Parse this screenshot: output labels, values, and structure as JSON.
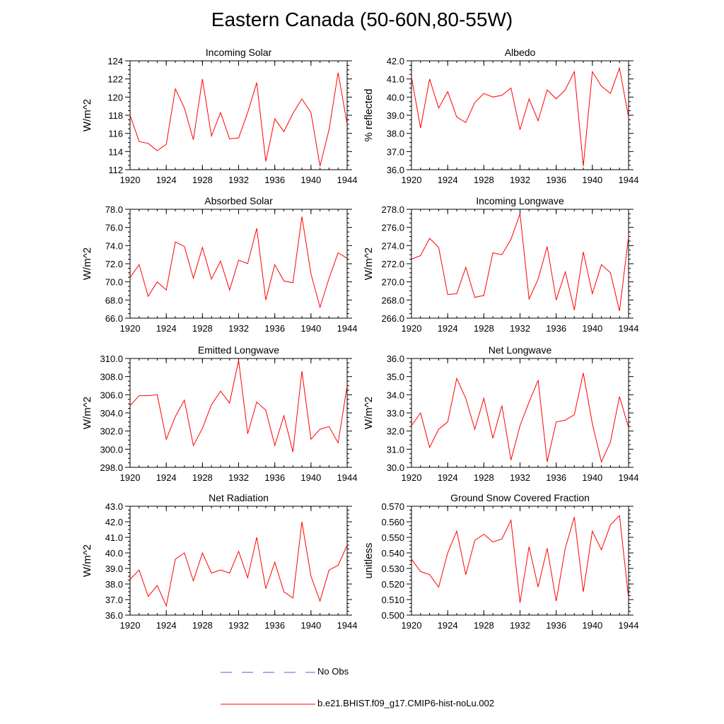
{
  "title": "Eastern Canada (50-60N,80-55W)",
  "colors": {
    "model": "#ff0000",
    "obs": "#5a5ad8",
    "axis": "#000000"
  },
  "legend": {
    "obs_label": "No Obs",
    "model_label": "b.e21.BHIST.f09_g17.CMIP6-hist-noLu.002"
  },
  "chart_data": [
    {
      "type": "line",
      "title": "Incoming Solar",
      "ylabel": "W/m^2",
      "xlim": [
        1920,
        1944
      ],
      "ylim": [
        112,
        124
      ],
      "xticks": [
        "1920",
        "1924",
        "1928",
        "1932",
        "1936",
        "1940",
        "1944"
      ],
      "yticks": [
        "112",
        "114",
        "116",
        "118",
        "120",
        "122",
        "124"
      ],
      "x": [
        1920,
        1921,
        1922,
        1923,
        1924,
        1925,
        1926,
        1927,
        1928,
        1929,
        1930,
        1931,
        1932,
        1933,
        1934,
        1935,
        1936,
        1937,
        1938,
        1939,
        1940,
        1941,
        1942,
        1943,
        1944
      ],
      "series": [
        {
          "values": [
            118.0,
            115.1,
            114.9,
            114.1,
            114.8,
            120.9,
            118.8,
            115.3,
            122.0,
            115.7,
            118.3,
            115.4,
            115.5,
            118.3,
            121.6,
            112.9,
            117.6,
            116.2,
            118.2,
            119.8,
            118.3,
            112.4,
            116.4,
            122.7,
            117.0
          ]
        }
      ]
    },
    {
      "type": "line",
      "title": "Albedo",
      "ylabel": "% reflected",
      "xlim": [
        1920,
        1944
      ],
      "ylim": [
        36.0,
        42.0
      ],
      "xticks": [
        "1920",
        "1924",
        "1928",
        "1932",
        "1936",
        "1940",
        "1944"
      ],
      "yticks": [
        "36.0",
        "37.0",
        "38.0",
        "39.0",
        "40.0",
        "41.0",
        "42.0"
      ],
      "x": [
        1920,
        1921,
        1922,
        1923,
        1924,
        1925,
        1926,
        1927,
        1928,
        1929,
        1930,
        1931,
        1932,
        1933,
        1934,
        1935,
        1936,
        1937,
        1938,
        1939,
        1940,
        1941,
        1942,
        1943,
        1944
      ],
      "series": [
        {
          "values": [
            41.1,
            38.3,
            41.0,
            39.4,
            40.3,
            38.9,
            38.6,
            39.7,
            40.2,
            40.0,
            40.1,
            40.5,
            38.2,
            39.9,
            38.7,
            40.4,
            39.9,
            40.4,
            41.4,
            36.2,
            41.4,
            40.6,
            40.2,
            41.6,
            38.9
          ]
        }
      ]
    },
    {
      "type": "line",
      "title": "Absorbed Solar",
      "ylabel": "W/m^2",
      "xlim": [
        1920,
        1944
      ],
      "ylim": [
        66.0,
        78.0
      ],
      "xticks": [
        "1920",
        "1924",
        "1928",
        "1932",
        "1936",
        "1940",
        "1944"
      ],
      "yticks": [
        "66.0",
        "68.0",
        "70.0",
        "72.0",
        "74.0",
        "76.0",
        "78.0"
      ],
      "x": [
        1920,
        1921,
        1922,
        1923,
        1924,
        1925,
        1926,
        1927,
        1928,
        1929,
        1930,
        1931,
        1932,
        1933,
        1934,
        1935,
        1936,
        1937,
        1938,
        1939,
        1940,
        1941,
        1942,
        1943,
        1944
      ],
      "series": [
        {
          "values": [
            70.5,
            71.9,
            68.4,
            70.0,
            69.1,
            74.4,
            73.9,
            70.4,
            73.8,
            70.3,
            72.3,
            69.1,
            72.4,
            72.0,
            75.9,
            68.0,
            71.9,
            70.1,
            69.9,
            77.2,
            70.9,
            67.2,
            70.4,
            73.2,
            72.6
          ]
        }
      ]
    },
    {
      "type": "line",
      "title": "Incoming Longwave",
      "ylabel": "W/m^2",
      "xlim": [
        1920,
        1944
      ],
      "ylim": [
        266.0,
        278.0
      ],
      "xticks": [
        "1920",
        "1924",
        "1928",
        "1932",
        "1936",
        "1940",
        "1944"
      ],
      "yticks": [
        "266.0",
        "268.0",
        "270.0",
        "272.0",
        "274.0",
        "276.0",
        "278.0"
      ],
      "x": [
        1920,
        1921,
        1922,
        1923,
        1924,
        1925,
        1926,
        1927,
        1928,
        1929,
        1930,
        1931,
        1932,
        1933,
        1934,
        1935,
        1936,
        1937,
        1938,
        1939,
        1940,
        1941,
        1942,
        1943,
        1944
      ],
      "series": [
        {
          "values": [
            272.5,
            272.9,
            274.8,
            273.8,
            268.6,
            268.7,
            271.6,
            268.3,
            268.5,
            273.2,
            273.0,
            274.7,
            277.5,
            268.1,
            270.3,
            273.9,
            268.0,
            271.1,
            266.9,
            273.3,
            268.7,
            271.9,
            271.0,
            266.8,
            275.0
          ]
        }
      ]
    },
    {
      "type": "line",
      "title": "Emitted Longwave",
      "ylabel": "W/m^2",
      "xlim": [
        1920,
        1944
      ],
      "ylim": [
        298.0,
        310.0
      ],
      "xticks": [
        "1920",
        "1924",
        "1928",
        "1932",
        "1936",
        "1940",
        "1944"
      ],
      "yticks": [
        "298.0",
        "300.0",
        "302.0",
        "304.0",
        "306.0",
        "308.0",
        "310.0"
      ],
      "x": [
        1920,
        1921,
        1922,
        1923,
        1924,
        1925,
        1926,
        1927,
        1928,
        1929,
        1930,
        1931,
        1932,
        1933,
        1934,
        1935,
        1936,
        1937,
        1938,
        1939,
        1940,
        1941,
        1942,
        1943,
        1944
      ],
      "series": [
        {
          "values": [
            304.8,
            305.9,
            305.9,
            306.0,
            301.1,
            303.6,
            305.4,
            300.4,
            302.3,
            304.9,
            306.4,
            305.1,
            309.8,
            301.7,
            305.2,
            304.3,
            300.4,
            303.7,
            299.7,
            308.6,
            301.1,
            302.2,
            302.5,
            300.7,
            307.0
          ]
        }
      ]
    },
    {
      "type": "line",
      "title": "Net Longwave",
      "ylabel": "W/m^2",
      "xlim": [
        1920,
        1944
      ],
      "ylim": [
        30.0,
        36.0
      ],
      "xticks": [
        "1920",
        "1924",
        "1928",
        "1932",
        "1936",
        "1940",
        "1944"
      ],
      "yticks": [
        "30.0",
        "31.0",
        "32.0",
        "33.0",
        "34.0",
        "35.0",
        "36.0"
      ],
      "x": [
        1920,
        1921,
        1922,
        1923,
        1924,
        1925,
        1926,
        1927,
        1928,
        1929,
        1930,
        1931,
        1932,
        1933,
        1934,
        1935,
        1936,
        1937,
        1938,
        1939,
        1940,
        1941,
        1942,
        1943,
        1944
      ],
      "series": [
        {
          "values": [
            32.3,
            33.0,
            31.1,
            32.1,
            32.5,
            34.9,
            33.8,
            32.1,
            33.8,
            31.6,
            33.4,
            30.4,
            32.3,
            33.6,
            34.8,
            30.3,
            32.5,
            32.6,
            32.9,
            35.2,
            32.4,
            30.3,
            31.4,
            33.9,
            32.2
          ]
        }
      ]
    },
    {
      "type": "line",
      "title": "Net Radiation",
      "ylabel": "W/m^2",
      "xlim": [
        1920,
        1944
      ],
      "ylim": [
        36.0,
        43.0
      ],
      "xticks": [
        "1920",
        "1924",
        "1928",
        "1932",
        "1936",
        "1940",
        "1944"
      ],
      "yticks": [
        "36.0",
        "37.0",
        "38.0",
        "39.0",
        "40.0",
        "41.0",
        "42.0",
        "43.0"
      ],
      "x": [
        1920,
        1921,
        1922,
        1923,
        1924,
        1925,
        1926,
        1927,
        1928,
        1929,
        1930,
        1931,
        1932,
        1933,
        1934,
        1935,
        1936,
        1937,
        1938,
        1939,
        1940,
        1941,
        1942,
        1943,
        1944
      ],
      "series": [
        {
          "values": [
            38.3,
            38.9,
            37.2,
            37.9,
            36.6,
            39.6,
            40.0,
            38.2,
            40.0,
            38.7,
            38.9,
            38.7,
            40.1,
            38.4,
            41.0,
            37.7,
            39.4,
            37.5,
            37.1,
            42.0,
            38.5,
            36.9,
            38.9,
            39.2,
            40.5
          ]
        }
      ]
    },
    {
      "type": "line",
      "title": "Ground Snow Covered Fraction",
      "ylabel": "unitless",
      "xlim": [
        1920,
        1944
      ],
      "ylim": [
        0.5,
        0.57
      ],
      "xticks": [
        "1920",
        "1924",
        "1928",
        "1932",
        "1936",
        "1940",
        "1944"
      ],
      "yticks": [
        "0.500",
        "0.510",
        "0.520",
        "0.530",
        "0.540",
        "0.550",
        "0.560",
        "0.570"
      ],
      "x": [
        1920,
        1921,
        1922,
        1923,
        1924,
        1925,
        1926,
        1927,
        1928,
        1929,
        1930,
        1931,
        1932,
        1933,
        1934,
        1935,
        1936,
        1937,
        1938,
        1939,
        1940,
        1941,
        1942,
        1943,
        1944
      ],
      "series": [
        {
          "values": [
            0.536,
            0.528,
            0.526,
            0.518,
            0.54,
            0.554,
            0.526,
            0.548,
            0.552,
            0.547,
            0.549,
            0.561,
            0.508,
            0.544,
            0.518,
            0.543,
            0.509,
            0.543,
            0.563,
            0.515,
            0.554,
            0.542,
            0.558,
            0.564,
            0.511
          ]
        }
      ]
    }
  ]
}
